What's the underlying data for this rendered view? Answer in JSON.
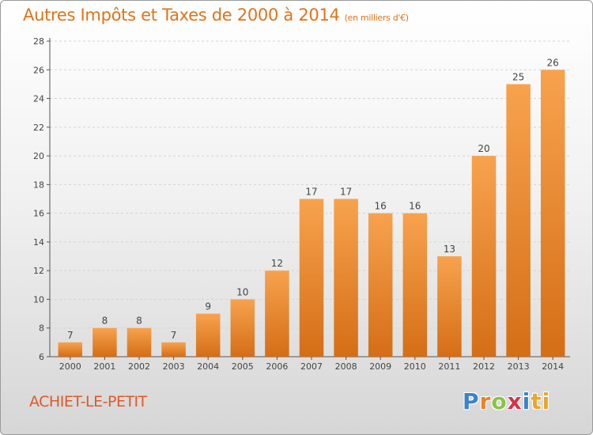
{
  "chart_data": {
    "type": "bar",
    "title": "Autres Impôts et Taxes de 2000 à 2014",
    "subtitle": "(en milliers d'€)",
    "xlabel": "",
    "ylabel": "",
    "ylim": [
      6,
      28
    ],
    "yticks": [
      6,
      8,
      10,
      12,
      14,
      16,
      18,
      20,
      22,
      24,
      26,
      28
    ],
    "categories": [
      "2000",
      "2001",
      "2002",
      "2003",
      "2004",
      "2005",
      "2006",
      "2007",
      "2008",
      "2009",
      "2010",
      "2011",
      "2012",
      "2013",
      "2014"
    ],
    "values": [
      7,
      8,
      8,
      7,
      9,
      10,
      12,
      17,
      17,
      16,
      16,
      13,
      20,
      25,
      26
    ],
    "bar_color_top": "#f8a24e",
    "bar_color_bottom": "#d46e16"
  },
  "footer": {
    "commune": "ACHIET-LE-PETIT",
    "logo": [
      "P",
      "r",
      "o",
      "x",
      "i",
      "ti"
    ]
  }
}
